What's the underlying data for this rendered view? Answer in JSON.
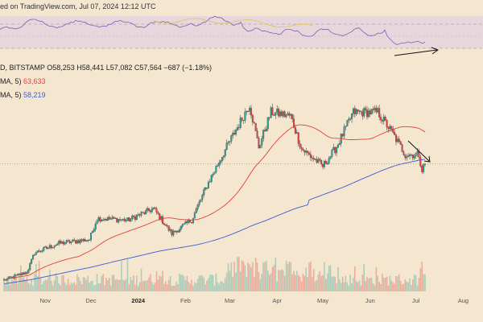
{
  "header": {
    "text": "ed on TradingView.com, Jul 07, 2024 12:12 UTC"
  },
  "legend": {
    "symbol_line": "D, BITSTAMP",
    "ohlc": {
      "open": "O58,253",
      "high": "H58,441",
      "low": "L57,082",
      "close": "C57,564",
      "change": "−687 (−1.18%)"
    },
    "ma50": {
      "label": "MA, 5)",
      "value": "63,633"
    },
    "ma200": {
      "label": "MA, 5)",
      "value": "58,219"
    }
  },
  "colors": {
    "background": "#f5e6d0",
    "rsi_band": "#e4d3df",
    "rsi_line": "#7b5fb5",
    "ma50": "#e0413c",
    "ma200": "#3b5bd7",
    "up": "#2a9d8f",
    "down": "#e0413c"
  },
  "chart_data": {
    "type": "candlestick",
    "x_ticks": [
      "Nov",
      "Dec",
      "2024",
      "Feb",
      "Mar",
      "Apr",
      "May",
      "Jun",
      "Jul",
      "Aug"
    ],
    "price_anchors": [
      {
        "date": "2023-10-05",
        "price": 27500
      },
      {
        "date": "2023-10-20",
        "price": 29500
      },
      {
        "date": "2023-10-25",
        "price": 34500
      },
      {
        "date": "2023-11-10",
        "price": 37000
      },
      {
        "date": "2023-11-30",
        "price": 38000
      },
      {
        "date": "2023-12-05",
        "price": 43500
      },
      {
        "date": "2023-12-25",
        "price": 43000
      },
      {
        "date": "2024-01-11",
        "price": 46000
      },
      {
        "date": "2024-01-23",
        "price": 39500
      },
      {
        "date": "2024-02-05",
        "price": 43000
      },
      {
        "date": "2024-02-15",
        "price": 52000
      },
      {
        "date": "2024-02-28",
        "price": 62000
      },
      {
        "date": "2024-03-14",
        "price": 73000
      },
      {
        "date": "2024-03-20",
        "price": 62000
      },
      {
        "date": "2024-03-28",
        "price": 71000
      },
      {
        "date": "2024-04-10",
        "price": 70000
      },
      {
        "date": "2024-04-17",
        "price": 61500
      },
      {
        "date": "2024-05-01",
        "price": 57000
      },
      {
        "date": "2024-05-10",
        "price": 62000
      },
      {
        "date": "2024-05-21",
        "price": 71000
      },
      {
        "date": "2024-06-06",
        "price": 71000
      },
      {
        "date": "2024-06-15",
        "price": 66000
      },
      {
        "date": "2024-06-24",
        "price": 60000
      },
      {
        "date": "2024-07-03",
        "price": 60000
      },
      {
        "date": "2024-07-05",
        "price": 56000
      },
      {
        "date": "2024-07-07",
        "price": 57564
      }
    ],
    "ma50_last": 63633,
    "ma200_last": 58219
  }
}
